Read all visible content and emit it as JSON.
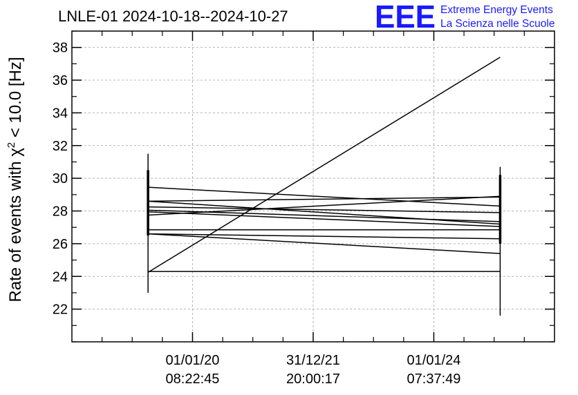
{
  "chart_data": {
    "type": "line",
    "title": "LNLE-01 2024-10-18--2024-10-27",
    "ylabel_prefix": "Rate of events with ",
    "ylabel_chi": "χ",
    "ylabel_sup": "2",
    "ylabel_suffix": " < 10.0 [Hz]",
    "xlabel": "",
    "x_ticks": [
      {
        "line1": "01/01/20",
        "line2": "08:22:45"
      },
      {
        "line1": "31/12/21",
        "line2": "20:00:17"
      },
      {
        "line1": "01/01/24",
        "line2": "07:37:49"
      }
    ],
    "x_tick_dates": [
      "2020-01-01 08:22:45",
      "2021-12-31 20:00:17",
      "2024-01-01 07:37:49"
    ],
    "x_range_dates": [
      "2018-01-01",
      "2026-01-01"
    ],
    "x_point_dates": [
      "2019-04-07",
      "2025-02-06"
    ],
    "y_ticks": [
      "22",
      "24",
      "26",
      "28",
      "30",
      "32",
      "34",
      "36",
      "38"
    ],
    "y_tick_values": [
      22,
      24,
      26,
      28,
      30,
      32,
      34,
      36,
      38
    ],
    "ylim": [
      20,
      39
    ],
    "grid": true,
    "series": [
      {
        "values": [
          24.25,
          37.4
        ]
      },
      {
        "values": [
          24.3,
          24.3
        ]
      },
      {
        "values": [
          29.45,
          28.3
        ]
      },
      {
        "values": [
          28.6,
          28.85
        ]
      },
      {
        "values": [
          28.25,
          27.9
        ]
      },
      {
        "values": [
          28.05,
          27.35
        ]
      },
      {
        "values": [
          27.95,
          27.05
        ]
      },
      {
        "values": [
          27.75,
          28.9
        ]
      },
      {
        "values": [
          26.85,
          26.85
        ]
      },
      {
        "values": [
          26.6,
          26.3
        ]
      },
      {
        "values": [
          26.6,
          25.4
        ]
      },
      {
        "values": [
          28.6,
          27.2
        ]
      }
    ],
    "error_bars": [
      {
        "point": 0,
        "low": 23.0,
        "high": 31.5
      },
      {
        "point": 1,
        "low": 21.6,
        "high": 30.7
      }
    ]
  },
  "logo": {
    "text": "EEE",
    "line1": "Extreme Energy Events",
    "line2": "La Scienza nelle Scuole",
    "color": "#1a1aff"
  }
}
